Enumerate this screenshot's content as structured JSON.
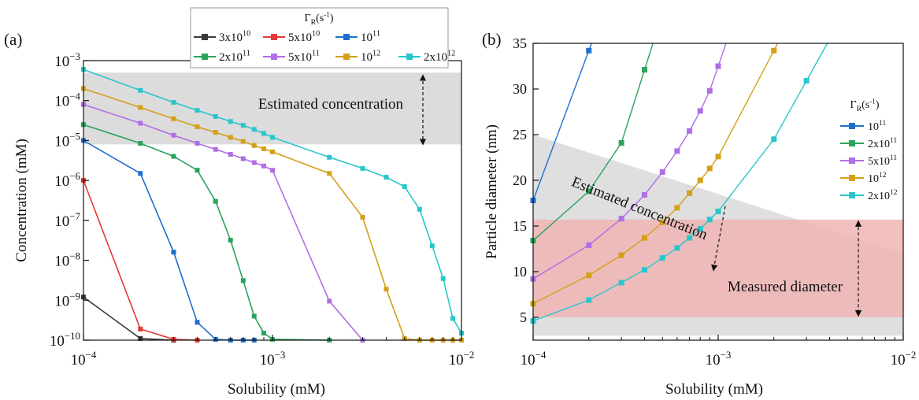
{
  "colors": {
    "black": "#3a3a3a",
    "red": "#e53935",
    "blue": "#1f6fd1",
    "green": "#2aa35c",
    "violet": "#b06ee6",
    "gold": "#d4a017",
    "cyan": "#29c6cc",
    "gray_band": "#dcdcdc",
    "red_band": "#f1b5b5"
  },
  "chart_data": [
    {
      "type": "line",
      "panel_label": "(a)",
      "xlabel": "Solubility (mM)",
      "ylabel": "Concentration (mM)",
      "x_scale": "log",
      "y_scale": "log",
      "xlim": [
        0.0001,
        0.01
      ],
      "ylim": [
        1e-10,
        0.001
      ],
      "x_ticks": [
        {
          "value": 0.0001,
          "base": "10",
          "exp": "−4"
        },
        {
          "value": 0.001,
          "base": "10",
          "exp": "−3"
        },
        {
          "value": 0.01,
          "base": "10",
          "exp": "−2"
        }
      ],
      "y_ticks": [
        {
          "value": 1e-10,
          "base": "10",
          "exp": "−10"
        },
        {
          "value": 1e-09,
          "base": "10",
          "exp": "−9"
        },
        {
          "value": 1e-08,
          "base": "10",
          "exp": "−8"
        },
        {
          "value": 1e-07,
          "base": "10",
          "exp": "−7"
        },
        {
          "value": 1e-06,
          "base": "10",
          "exp": "−6"
        },
        {
          "value": 1e-05,
          "base": "10",
          "exp": "−5"
        },
        {
          "value": 0.0001,
          "base": "10",
          "exp": "−4"
        },
        {
          "value": 0.001,
          "base": "10",
          "exp": "−3"
        }
      ],
      "band": {
        "y0": 8e-06,
        "y1": 0.0005,
        "label": "Estimated concentration"
      },
      "legend": {
        "title_main": "Γ",
        "title_sub": "R",
        "title_unit": "(s",
        "title_exp": "-1",
        "title_end": ")",
        "placement": "top"
      },
      "series": [
        {
          "name_base": "3x10",
          "name_exp": "10",
          "color": "#3a3a3a",
          "x": [
            0.0001,
            0.0002,
            0.0003
          ],
          "y": [
            1.2e-09,
            1.1e-10,
            1e-10
          ]
        },
        {
          "name_base": "5x10",
          "name_exp": "10",
          "color": "#e53935",
          "x": [
            0.0001,
            0.0002,
            0.0003,
            0.0004
          ],
          "y": [
            1e-06,
            1.9e-10,
            1.05e-10,
            1e-10
          ]
        },
        {
          "name_base": "10",
          "name_exp": "11",
          "color": "#1f6fd1",
          "x": [
            0.0001,
            0.0002,
            0.0003,
            0.0004,
            0.0005,
            0.0006,
            0.0007,
            0.0008
          ],
          "y": [
            1e-05,
            1.5e-06,
            1.6e-08,
            2.8e-10,
            1.05e-10,
            1e-10,
            1e-10,
            1e-10
          ]
        },
        {
          "name_base": "2x10",
          "name_exp": "11",
          "color": "#2aa35c",
          "x": [
            0.0001,
            0.0002,
            0.0003,
            0.0004,
            0.0005,
            0.0006,
            0.0007,
            0.0008,
            0.0009,
            0.001,
            0.002
          ],
          "y": [
            2.5e-05,
            8.5e-06,
            4e-06,
            1.8e-06,
            3e-07,
            3.2e-08,
            3.1e-09,
            4e-10,
            1.5e-10,
            1.05e-10,
            1e-10
          ]
        },
        {
          "name_base": "5x10",
          "name_exp": "11",
          "color": "#b06ee6",
          "x": [
            0.0001,
            0.0002,
            0.0003,
            0.0004,
            0.0005,
            0.0006,
            0.0007,
            0.0008,
            0.0009,
            0.001,
            0.002,
            0.003
          ],
          "y": [
            8e-05,
            2.7e-05,
            1.35e-05,
            8.5e-06,
            6e-06,
            4.5e-06,
            3.5e-06,
            2.8e-06,
            2.3e-06,
            1.8e-06,
            9.5e-10,
            1e-10
          ]
        },
        {
          "name_base": "10",
          "name_exp": "12",
          "color": "#d4a017",
          "x": [
            0.0001,
            0.0002,
            0.0003,
            0.0004,
            0.0005,
            0.0006,
            0.0007,
            0.0008,
            0.0009,
            0.001,
            0.002,
            0.003,
            0.004,
            0.005,
            0.006,
            0.007,
            0.008,
            0.009,
            0.01
          ],
          "y": [
            0.0002,
            6.7e-05,
            3.5e-05,
            2.2e-05,
            1.6e-05,
            1.2e-05,
            9.5e-06,
            7.5e-06,
            6.2e-06,
            5.2e-06,
            1.5e-06,
            1.2e-07,
            1.9e-09,
            1.1e-10,
            1e-10,
            1e-10,
            1e-10,
            1e-10,
            1e-10
          ]
        },
        {
          "name_base": "2x10",
          "name_exp": "12",
          "color": "#29c6cc",
          "x": [
            0.0001,
            0.0002,
            0.0003,
            0.0004,
            0.0005,
            0.0006,
            0.0007,
            0.0008,
            0.0009,
            0.001,
            0.002,
            0.003,
            0.004,
            0.005,
            0.006,
            0.007,
            0.008,
            0.009,
            0.01
          ],
          "y": [
            0.0006,
            0.00018,
            9e-05,
            5.7e-05,
            4e-05,
            3e-05,
            2.4e-05,
            1.9e-05,
            1.5e-05,
            1.2e-05,
            3.8e-06,
            2e-06,
            1.2e-06,
            7e-07,
            1.9e-07,
            2.3e-08,
            3.5e-09,
            3.5e-10,
            1.5e-10
          ]
        }
      ]
    },
    {
      "type": "line",
      "panel_label": "(b)",
      "xlabel": "Solubility (mM)",
      "ylabel": "Particle diameter (nm)",
      "x_scale": "log",
      "y_scale": "linear",
      "xlim": [
        0.0001,
        0.01
      ],
      "ylim": [
        2.5,
        35
      ],
      "x_ticks": [
        {
          "value": 0.0001,
          "base": "10",
          "exp": "−4"
        },
        {
          "value": 0.001,
          "base": "10",
          "exp": "−3"
        },
        {
          "value": 0.01,
          "base": "10",
          "exp": "−2"
        }
      ],
      "y_ticks": [
        5,
        10,
        15,
        20,
        25,
        30,
        35
      ],
      "gray_band": {
        "label": "Estimated concentration",
        "top_left": 25,
        "top_right": 12,
        "bottom": 3
      },
      "red_band": {
        "y0": 5,
        "y1": 15.7,
        "label": "Measured diameter"
      },
      "legend": {
        "title_main": "Γ",
        "title_sub": "R",
        "title_unit": "(s",
        "title_exp": "-1",
        "title_end": ")",
        "placement": "right"
      },
      "series": [
        {
          "name_base": "10",
          "name_exp": "11",
          "color": "#1f6fd1",
          "x": [
            0.0001,
            0.0002
          ],
          "y": [
            17.8,
            34.2
          ]
        },
        {
          "name_base": "2x10",
          "name_exp": "11",
          "color": "#2aa35c",
          "x": [
            0.0001,
            0.0002,
            0.0003,
            0.0004
          ],
          "y": [
            13.4,
            18.8,
            24.1,
            32.1
          ]
        },
        {
          "name_base": "5x10",
          "name_exp": "11",
          "color": "#b06ee6",
          "x": [
            0.0001,
            0.0002,
            0.0003,
            0.0004,
            0.0005,
            0.0006,
            0.0007,
            0.0008,
            0.0009,
            0.001
          ],
          "y": [
            9.2,
            12.9,
            15.8,
            18.4,
            20.9,
            23.2,
            25.4,
            27.6,
            29.8,
            32.5
          ]
        },
        {
          "name_base": "10",
          "name_exp": "12",
          "color": "#d4a017",
          "x": [
            0.0001,
            0.0002,
            0.0003,
            0.0004,
            0.0005,
            0.0006,
            0.0007,
            0.0008,
            0.0009,
            0.001,
            0.002
          ],
          "y": [
            6.5,
            9.6,
            11.8,
            13.7,
            15.4,
            17.0,
            18.6,
            20.0,
            21.3,
            22.6,
            34.2
          ]
        },
        {
          "name_base": "2x10",
          "name_exp": "12",
          "color": "#29c6cc",
          "x": [
            0.0001,
            0.0002,
            0.0003,
            0.0004,
            0.0005,
            0.0006,
            0.0007,
            0.0008,
            0.0009,
            0.001,
            0.002,
            0.003
          ],
          "y": [
            4.6,
            6.9,
            8.8,
            10.2,
            11.5,
            12.6,
            13.7,
            14.7,
            15.7,
            16.6,
            24.5,
            30.9
          ]
        }
      ]
    }
  ]
}
